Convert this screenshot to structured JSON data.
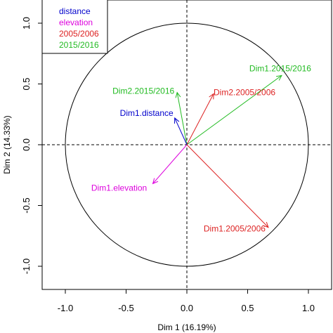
{
  "chart_data": {
    "type": "scatter",
    "subtype": "correlation-circle",
    "title": "",
    "xlabel": "Dim 1 (16.19%)",
    "ylabel": "Dim 2 (14.33%)",
    "xlim": [
      -1.2,
      1.2
    ],
    "ylim": [
      -1.2,
      1.2
    ],
    "x_ticks": [
      -1.0,
      -0.5,
      0.0,
      0.5,
      1.0
    ],
    "y_ticks": [
      -1.0,
      -0.5,
      0.0,
      0.5,
      1.0
    ],
    "x_tick_labels": [
      "-1.0",
      "-0.5",
      "0.0",
      "0.5",
      "1.0"
    ],
    "y_tick_labels": [
      "-1.0",
      "-0.5",
      "0.0",
      "0.5",
      "1.0"
    ],
    "unit_circle": true,
    "reference_lines": {
      "x": 0,
      "y": 0,
      "style": "dashed"
    },
    "grid": false,
    "legend": {
      "placement": "top-left",
      "entries": [
        {
          "label": "distance",
          "color": "#0000cc"
        },
        {
          "label": "elevation",
          "color": "#dd00dd"
        },
        {
          "label": "2005/2006",
          "color": "#dd2222"
        },
        {
          "label": "2015/2016",
          "color": "#22bb22"
        }
      ]
    },
    "vectors": [
      {
        "label": "Dim1.2015/2016",
        "x": 0.78,
        "y": 0.57,
        "color": "#22bb22"
      },
      {
        "label": "Dim2.2005/2006",
        "x": 0.22,
        "y": 0.42,
        "color": "#dd2222"
      },
      {
        "label": "Dim2.2015/2016",
        "x": -0.08,
        "y": 0.43,
        "color": "#22bb22"
      },
      {
        "label": "Dim1.distance",
        "x": -0.1,
        "y": 0.22,
        "color": "#0000cc"
      },
      {
        "label": "Dim1.elevation",
        "x": -0.28,
        "y": -0.32,
        "color": "#dd00dd"
      },
      {
        "label": "Dim1.2005/2006",
        "x": 0.67,
        "y": -0.68,
        "color": "#dd2222"
      }
    ]
  }
}
